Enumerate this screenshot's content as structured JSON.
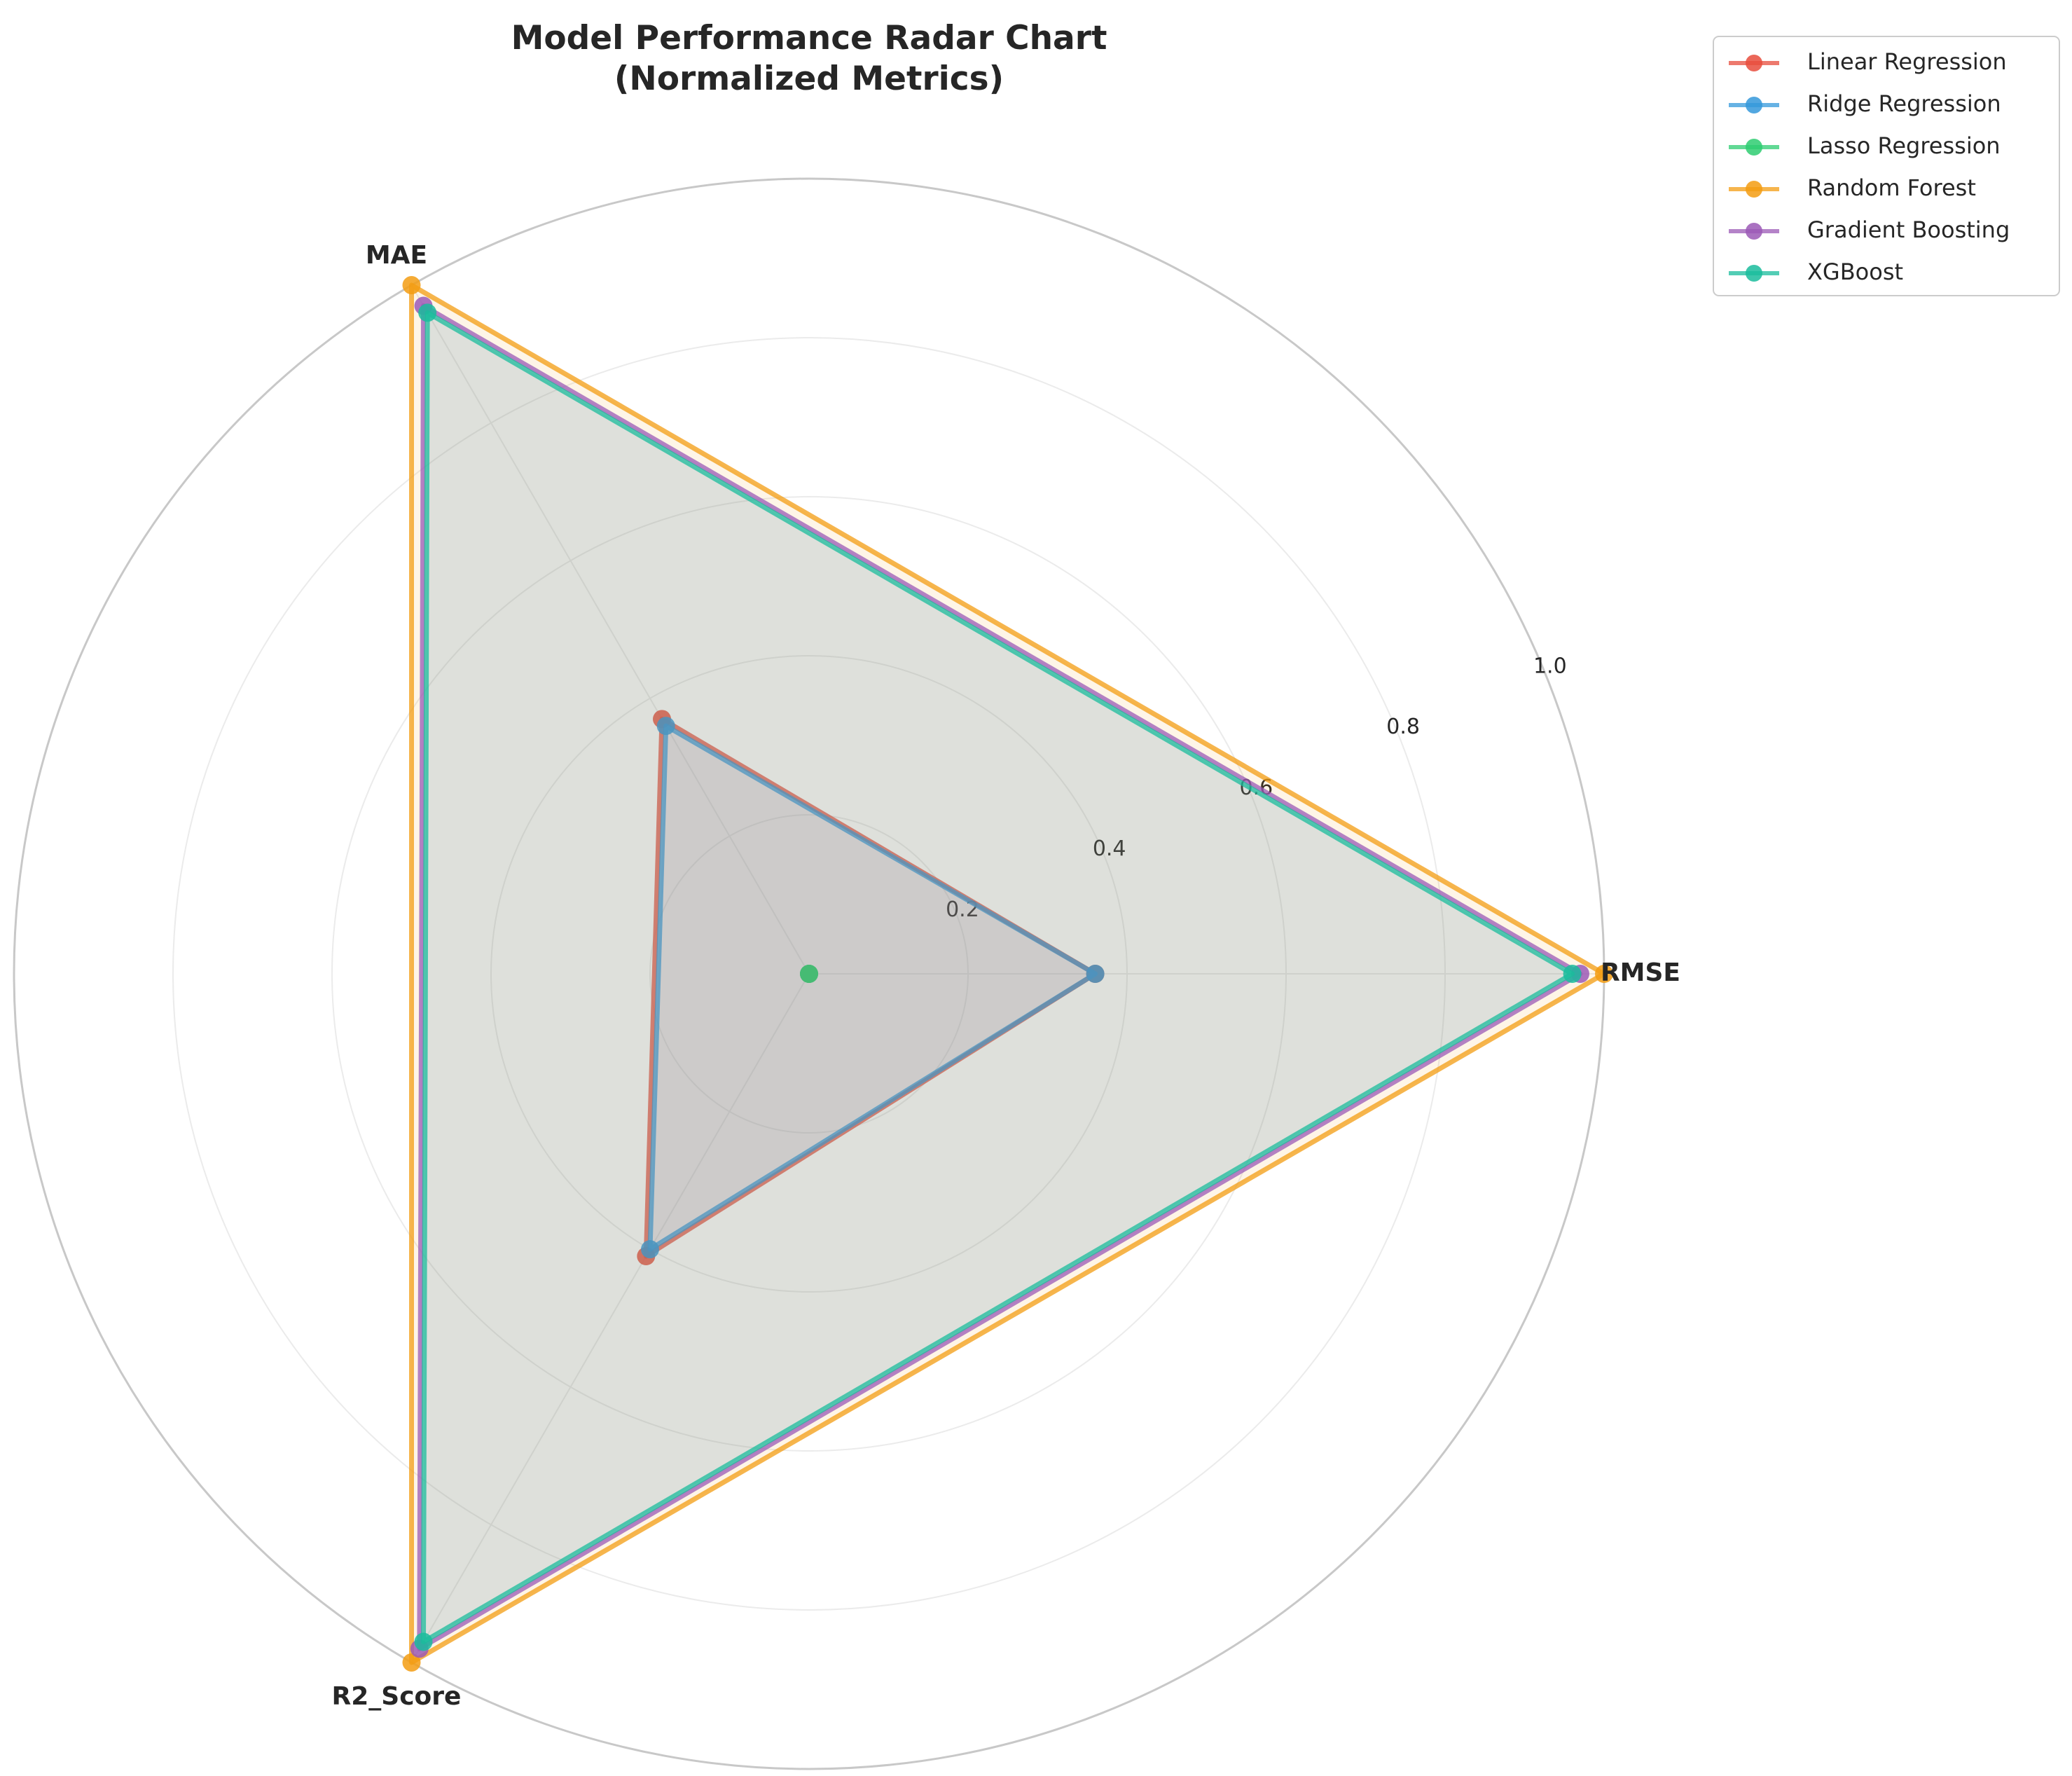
{
  "chart_data": {
    "type": "radar",
    "title": "Model Performance Radar Chart\n(Normalized Metrics)",
    "axes": [
      "RMSE",
      "MAE",
      "R2_Score"
    ],
    "rlim": [
      0,
      1.0
    ],
    "rticks": [
      "0.2",
      "0.4",
      "0.6",
      "0.8",
      "1.0"
    ],
    "legend_position": "top-right",
    "grid": true,
    "series": [
      {
        "name": "Linear Regression",
        "color": "#e74c3c",
        "values": [
          0.36,
          0.37,
          0.41
        ]
      },
      {
        "name": "Ridge Regression",
        "color": "#3498db",
        "values": [
          0.36,
          0.36,
          0.4
        ]
      },
      {
        "name": "Lasso Regression",
        "color": "#2ecc71",
        "values": [
          0.0,
          0.0,
          0.0
        ]
      },
      {
        "name": "Random Forest",
        "color": "#f39c12",
        "values": [
          1.0,
          1.0,
          1.0
        ]
      },
      {
        "name": "Gradient Boosting",
        "color": "#9b59b6",
        "values": [
          0.97,
          0.97,
          0.98
        ]
      },
      {
        "name": "XGBoost",
        "color": "#1abc9c",
        "values": [
          0.96,
          0.96,
          0.97
        ]
      }
    ]
  }
}
